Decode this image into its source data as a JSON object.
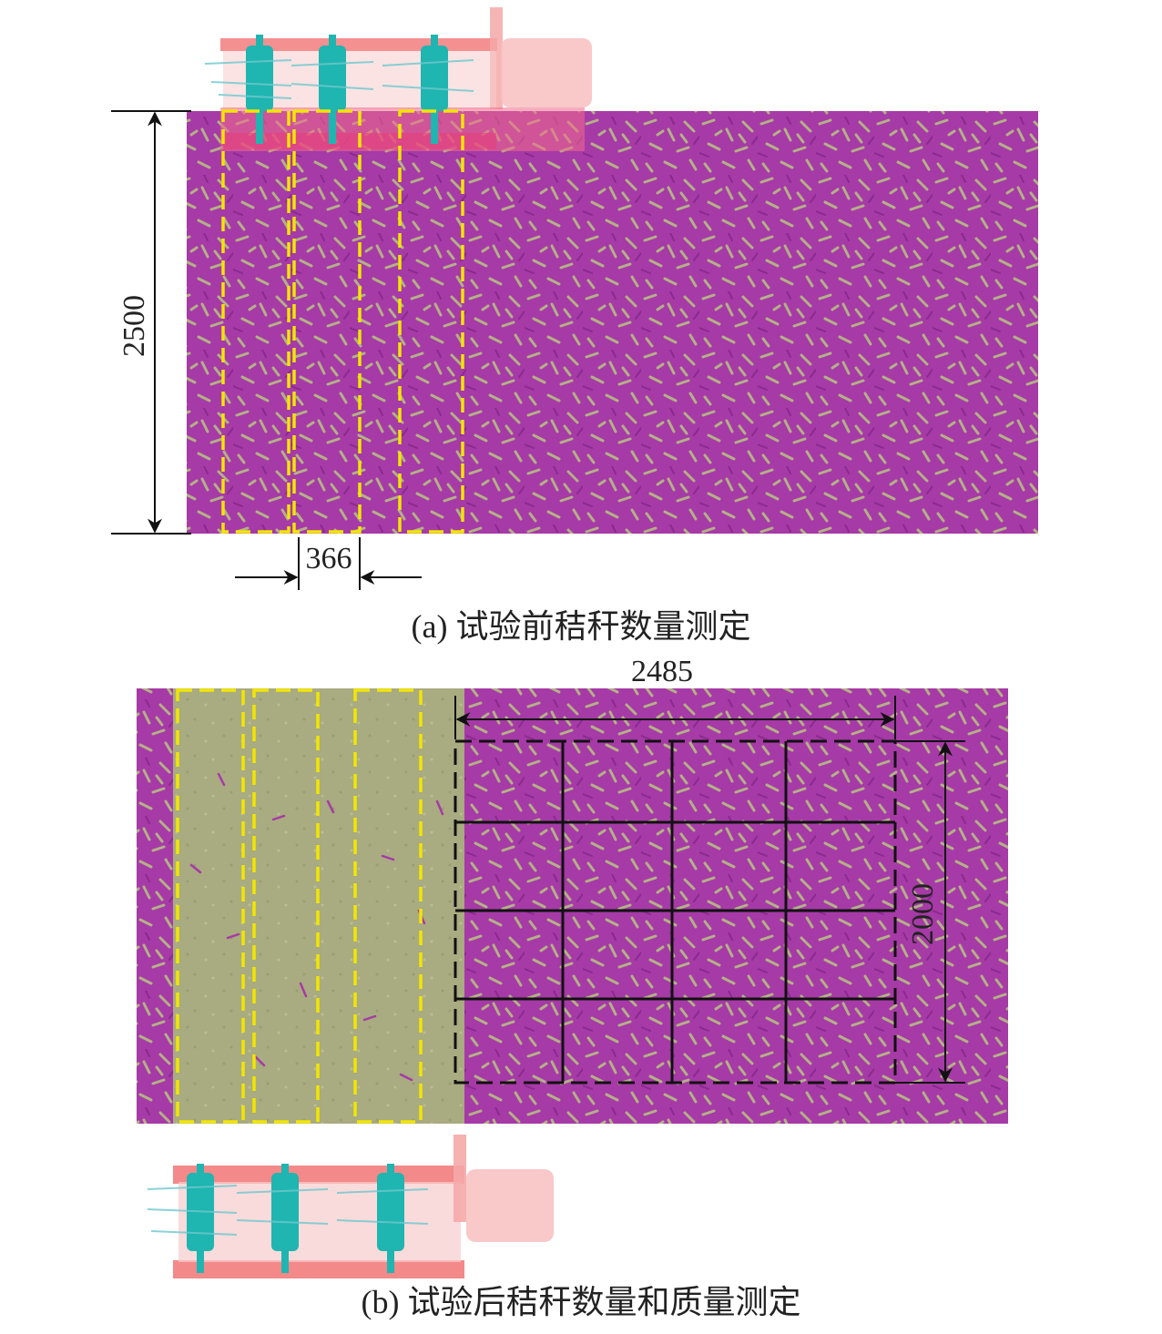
{
  "panel_a": {
    "caption": "(a) 试验前秸秆数量测定",
    "dim_height": "2500",
    "dim_width": "366"
  },
  "panel_b": {
    "caption": "(b) 试验后秸秆数量和质量测定",
    "dim_width": "2485",
    "dim_height": "2000"
  },
  "colors": {
    "straw": "#a63aa6",
    "straw_dark": "#8a2a8e",
    "soil": "#a3a67a",
    "soil_light": "#b5b58c",
    "strip_guide": "#f2e600",
    "grid": "#111111",
    "machine_frame": "#f26d6d",
    "machine_body": "#f7b9b9",
    "rotor": "#1fb5b0",
    "dimension": "#111111"
  }
}
